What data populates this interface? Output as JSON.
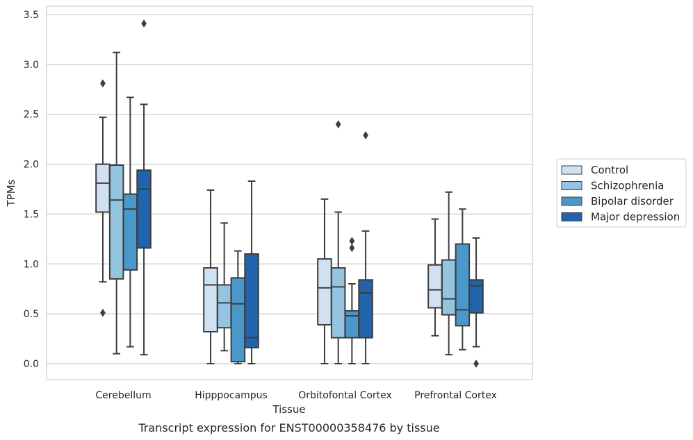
{
  "chart_data": {
    "type": "box",
    "caption": "Transcript expression for ENST00000358476 by tissue",
    "xlabel": "Tissue",
    "ylabel": "TPMs",
    "ylim": [
      -0.17,
      3.58
    ],
    "yticks": [
      "0.0",
      "0.5",
      "1.0",
      "1.5",
      "2.0",
      "2.5",
      "3.0",
      "3.5"
    ],
    "grid": "horizontal",
    "legend_position": "right",
    "categories": [
      "Cerebellum",
      "Hipppocampus",
      "Orbitofontal Cortex",
      "Prefrontal Cortex"
    ],
    "series": [
      {
        "name": "Control",
        "color": "#d0e1f2",
        "boxes": [
          {
            "whislo": 0.82,
            "q1": 1.52,
            "med": 1.81,
            "q3": 2.0,
            "whishi": 2.47,
            "fliers": [
              2.81,
              0.51
            ]
          },
          {
            "whislo": 0.0,
            "q1": 0.32,
            "med": 0.79,
            "q3": 0.96,
            "whishi": 1.74,
            "fliers": []
          },
          {
            "whislo": 0.0,
            "q1": 0.39,
            "med": 0.76,
            "q3": 1.05,
            "whishi": 1.65,
            "fliers": []
          },
          {
            "whislo": 0.28,
            "q1": 0.56,
            "med": 0.74,
            "q3": 0.99,
            "whishi": 1.45,
            "fliers": []
          }
        ]
      },
      {
        "name": "Schizophrenia",
        "color": "#94c4df",
        "boxes": [
          {
            "whislo": 0.1,
            "q1": 0.85,
            "med": 1.64,
            "q3": 1.99,
            "whishi": 3.12,
            "fliers": []
          },
          {
            "whislo": 0.13,
            "q1": 0.36,
            "med": 0.61,
            "q3": 0.79,
            "whishi": 1.41,
            "fliers": []
          },
          {
            "whislo": 0.0,
            "q1": 0.26,
            "med": 0.77,
            "q3": 0.96,
            "whishi": 1.52,
            "fliers": [
              2.4
            ]
          },
          {
            "whislo": 0.09,
            "q1": 0.49,
            "med": 0.65,
            "q3": 1.04,
            "whishi": 1.72,
            "fliers": []
          }
        ]
      },
      {
        "name": "Bipolar disorder",
        "color": "#4a98c9",
        "boxes": [
          {
            "whislo": 0.17,
            "q1": 0.94,
            "med": 1.55,
            "q3": 1.7,
            "whishi": 2.67,
            "fliers": []
          },
          {
            "whislo": 0.0,
            "q1": 0.02,
            "med": 0.6,
            "q3": 0.86,
            "whishi": 1.13,
            "fliers": []
          },
          {
            "whislo": 0.0,
            "q1": 0.26,
            "med": 0.48,
            "q3": 0.53,
            "whishi": 0.8,
            "fliers": [
              1.23,
              1.16
            ]
          },
          {
            "whislo": 0.14,
            "q1": 0.38,
            "med": 0.54,
            "q3": 1.2,
            "whishi": 1.55,
            "fliers": []
          }
        ]
      },
      {
        "name": "Major depression",
        "color": "#2164ab",
        "boxes": [
          {
            "whislo": 0.09,
            "q1": 1.16,
            "med": 1.75,
            "q3": 1.94,
            "whishi": 2.6,
            "fliers": [
              3.41
            ]
          },
          {
            "whislo": 0.0,
            "q1": 0.16,
            "med": 0.26,
            "q3": 1.1,
            "whishi": 1.83,
            "fliers": []
          },
          {
            "whislo": 0.0,
            "q1": 0.26,
            "med": 0.71,
            "q3": 0.84,
            "whishi": 1.33,
            "fliers": [
              2.29
            ]
          },
          {
            "whislo": 0.17,
            "q1": 0.51,
            "med": 0.78,
            "q3": 0.84,
            "whishi": 1.26,
            "fliers": [
              0.0
            ]
          }
        ]
      }
    ]
  }
}
